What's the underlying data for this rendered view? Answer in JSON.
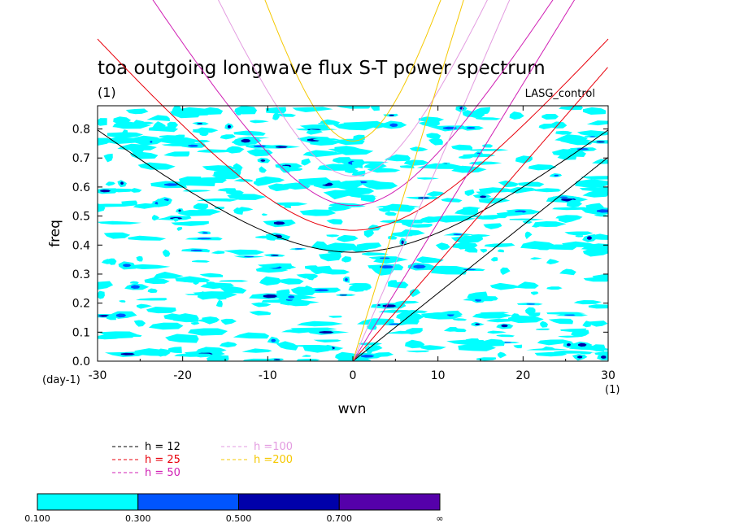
{
  "chart_data": {
    "type": "contour",
    "title": "toa outgoing longwave flux S-T power spectrum",
    "title_unit": "(1)",
    "dataset_label": "LASG_control",
    "xlabel": "wvn",
    "xunit": "(1)",
    "ylabel": "freq",
    "yunit": "(day-1)",
    "xlim": [
      -30,
      30
    ],
    "ylim": [
      0,
      0.88
    ],
    "x_ticks": [
      "-30",
      "-20",
      "-10",
      "0",
      "10",
      "20",
      "30"
    ],
    "y_ticks": [
      "0.0",
      "0.1",
      "0.2",
      "0.3",
      "0.4",
      "0.5",
      "0.6",
      "0.7",
      "0.8"
    ],
    "grid": false,
    "dispersion_curves": [
      {
        "label": "h = 12",
        "h": 12,
        "color": "#000000"
      },
      {
        "label": "h = 25",
        "h": 25,
        "color": "#e8000b"
      },
      {
        "label": "h = 50",
        "h": 50,
        "color": "#d01fb4"
      },
      {
        "label": "h =100",
        "h": 100,
        "color": "#e39be0"
      },
      {
        "label": "h =200",
        "h": 200,
        "color": "#f5c800"
      }
    ],
    "colorbar": {
      "labels": [
        "0.100",
        "0.300",
        "0.500",
        "0.700",
        "∞"
      ],
      "colors": [
        "#00ffff",
        "#0055ff",
        "#0000aa",
        "#5500aa"
      ]
    },
    "legend_placement": "bottom-left"
  }
}
